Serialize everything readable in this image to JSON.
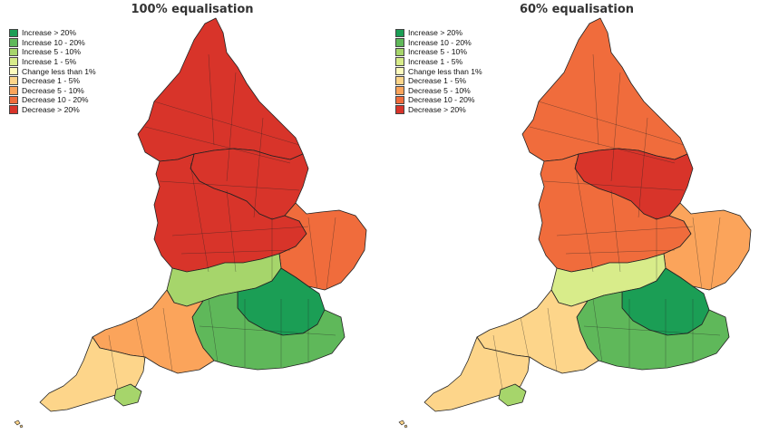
{
  "colors": {
    "inc20": "#1b9e55",
    "inc10": "#5fb85a",
    "inc5": "#a6d56b",
    "inc1": "#d8ec8a",
    "flat": "#fdfbbd",
    "dec1": "#fdd58a",
    "dec5": "#fba45b",
    "dec10": "#f06c3c",
    "dec20": "#d8342a",
    "boundary": "#222222"
  },
  "legend": [
    {
      "label": "Increase > 20%",
      "color": "#1b9e55"
    },
    {
      "label": "Increase 10 - 20%",
      "color": "#5fb85a"
    },
    {
      "label": "Increase 5 - 10%",
      "color": "#a6d56b"
    },
    {
      "label": "Increase 1 - 5%",
      "color": "#d8ec8a"
    },
    {
      "label": "Change less than 1%",
      "color": "#fdfbbd"
    },
    {
      "label": "Decrease 1 - 5%",
      "color": "#fdd58a"
    },
    {
      "label": "Decrease 5 - 10%",
      "color": "#fba45b"
    },
    {
      "label": "Decrease 10 - 20%",
      "color": "#f06c3c"
    },
    {
      "label": "Decrease > 20%",
      "color": "#d8342a"
    }
  ],
  "maps": [
    {
      "title": "100% equalisation",
      "region_colors": {
        "north": "#d8342a",
        "yorkshire": "#d8342a",
        "midlands": "#d8342a",
        "east": "#f06c3c",
        "southmid": "#a6d56b",
        "london": "#1b9e55",
        "southeast": "#5fb85a",
        "southwest": "#fba45b",
        "cornwall": "#fdd58a",
        "coast": "#a6d56b"
      }
    },
    {
      "title": "60% equalisation",
      "region_colors": {
        "north": "#f06c3c",
        "yorkshire": "#d8342a",
        "midlands": "#f06c3c",
        "east": "#fba45b",
        "southmid": "#d8ec8a",
        "london": "#1b9e55",
        "southeast": "#5fb85a",
        "southwest": "#fdd58a",
        "cornwall": "#fdd58a",
        "coast": "#a6d56b"
      }
    }
  ]
}
